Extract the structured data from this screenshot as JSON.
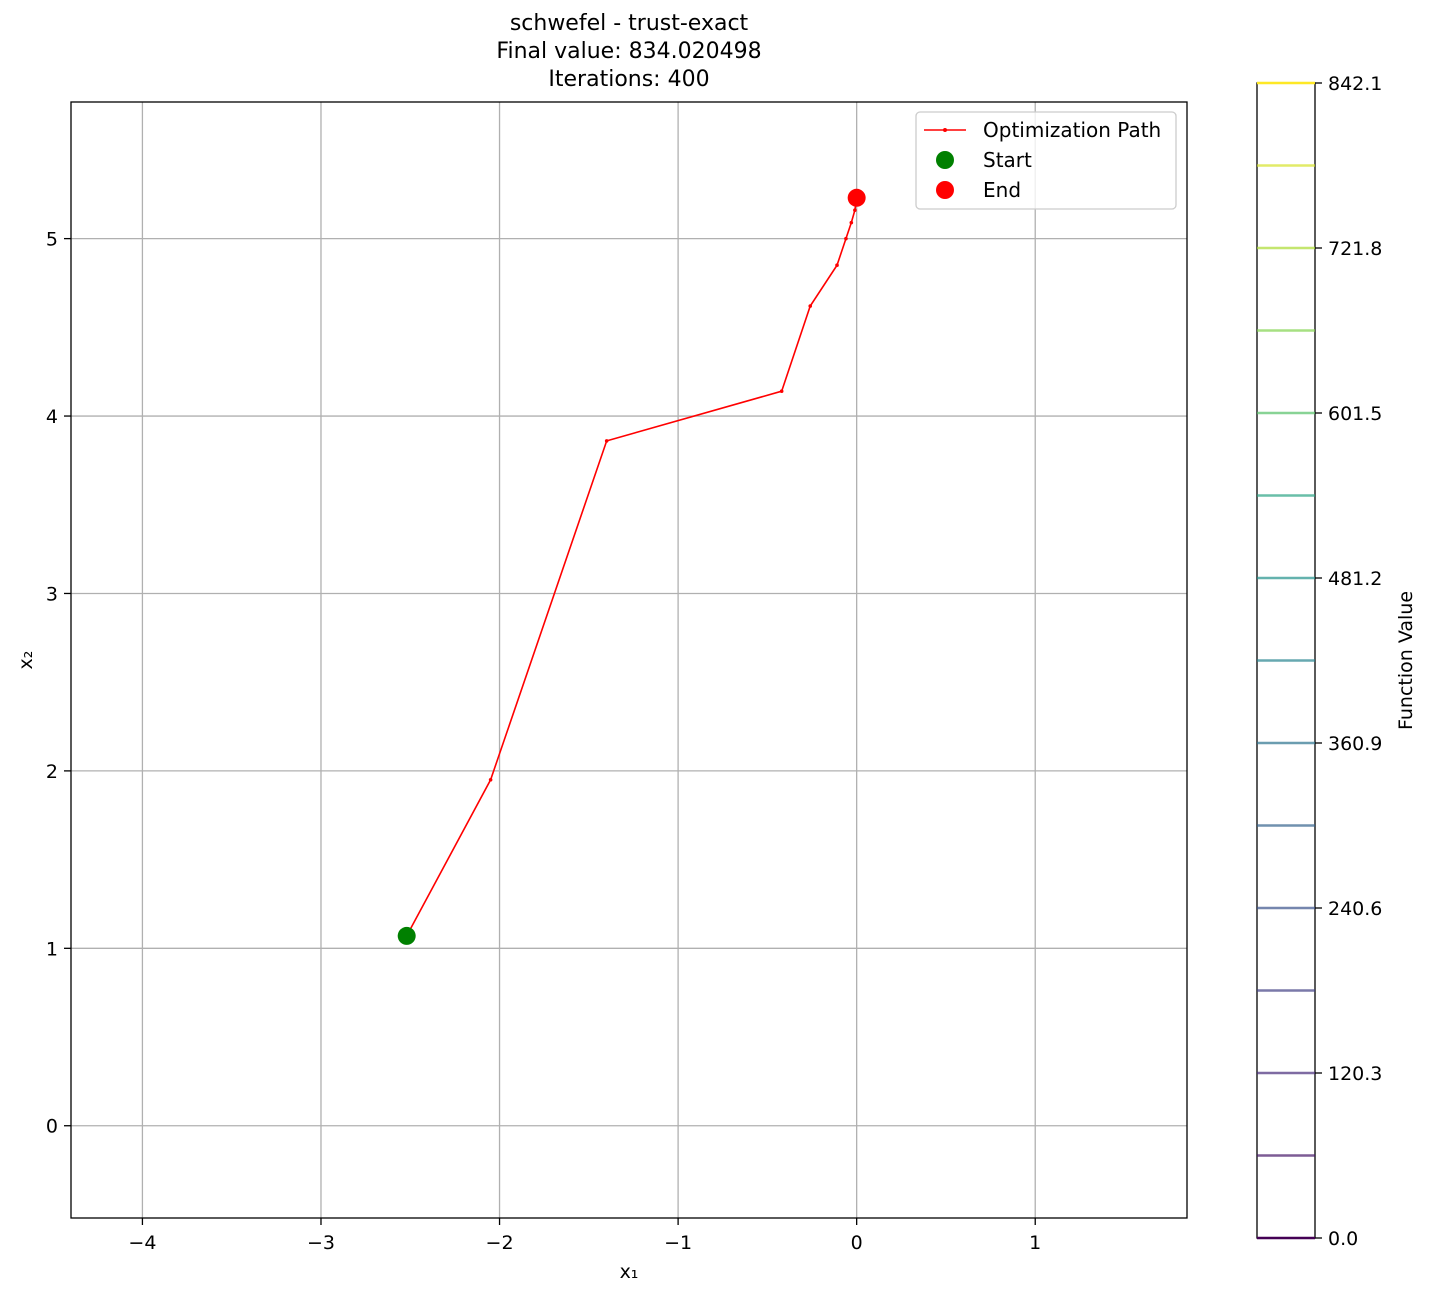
{
  "title": {
    "line1": "schwefel - trust-exact",
    "line2": "Final value: 834.020498",
    "line3": "Iterations: 400"
  },
  "chart_data": {
    "type": "line",
    "xlabel": "x₁",
    "ylabel": "x₂",
    "xlim": [
      -4.4,
      1.85
    ],
    "ylim": [
      -0.52,
      5.77
    ],
    "xticks": [
      -4,
      -3,
      -2,
      -1,
      0,
      1
    ],
    "xtick_labels": [
      "−4",
      "−3",
      "−2",
      "−1",
      "0",
      "1"
    ],
    "yticks": [
      0,
      1,
      2,
      3,
      4,
      5
    ],
    "ytick_labels": [
      "0",
      "1",
      "2",
      "3",
      "4",
      "5"
    ],
    "grid": true,
    "legend_position": "top-right",
    "series": [
      {
        "name": "Optimization Path",
        "color": "#ff0000",
        "x": [
          -2.52,
          -2.05,
          -1.4,
          -0.42,
          -0.26,
          -0.11,
          -0.06,
          -0.03,
          -0.01,
          0.0
        ],
        "y": [
          1.07,
          1.95,
          3.86,
          4.14,
          4.62,
          4.85,
          5.0,
          5.09,
          5.16,
          5.23
        ]
      }
    ],
    "markers": [
      {
        "name": "Start",
        "color": "#008000",
        "x": -2.52,
        "y": 1.07
      },
      {
        "name": "End",
        "color": "#ff0000",
        "x": 0.0,
        "y": 5.23
      }
    ],
    "colorbar": {
      "label": "Function Value",
      "min": 0.0,
      "max": 842.1,
      "ticks": [
        0.0,
        120.3,
        240.6,
        360.9,
        481.2,
        601.5,
        721.8,
        842.1
      ],
      "tick_labels": [
        "0.0",
        "120.3",
        "240.6",
        "360.9",
        "481.2",
        "601.5",
        "721.8",
        "842.1"
      ],
      "levels": [
        0.0,
        60.15,
        120.3,
        180.45,
        240.6,
        300.75,
        360.9,
        421.05,
        481.2,
        541.35,
        601.5,
        661.65,
        721.8,
        781.95,
        842.1
      ],
      "level_colors": [
        "#440154",
        "#482777",
        "#3f4a8a",
        "#31678e",
        "#26838f",
        "#1f9d8a",
        "#6cce5a",
        "#b6de2b",
        "#fee825"
      ]
    }
  }
}
